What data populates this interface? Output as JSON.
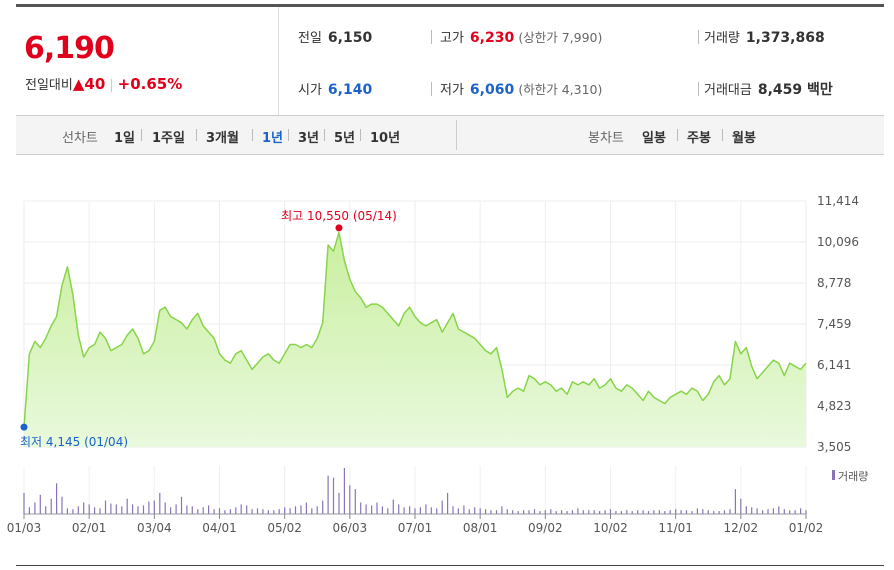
{
  "quote": {
    "price": "6,190",
    "change_label": "전일대비",
    "change_arrow": "▲",
    "change_value": "40",
    "change_pct": "+0.65%",
    "prev_label": "전일",
    "prev_value": "6,150",
    "high_label": "고가",
    "high_value": "6,230",
    "upper_limit": "(상한가 7,990)",
    "volume_label": "거래량",
    "volume_value": "1,373,868",
    "open_label": "시가",
    "open_value": "6,140",
    "low_label": "저가",
    "low_value": "6,060",
    "lower_limit": "(하한가 4,310)",
    "amount_label": "거래대금",
    "amount_value": "8,459 백만"
  },
  "tabs": {
    "line_label": "선차트",
    "line_items": [
      "1일",
      "1주일",
      "3개월",
      "1년",
      "3년",
      "5년",
      "10년"
    ],
    "active": "1년",
    "candle_label": "봉차트",
    "candle_items": [
      "일봉",
      "주봉",
      "월봉"
    ]
  },
  "colors": {
    "up": "#e0001b",
    "down": "#1b63c8",
    "line": "#88d44a",
    "area": "#e9f9dd",
    "volume": "#8a74b8"
  },
  "chart_data": {
    "type": "area",
    "x_ticks": [
      "01/03",
      "02/01",
      "03/04",
      "04/01",
      "05/02",
      "06/03",
      "07/01",
      "08/01",
      "09/02",
      "10/02",
      "11/01",
      "12/02",
      "01/02"
    ],
    "y_ticks": [
      "11,414",
      "10,096",
      "8,778",
      "7,459",
      "6,141",
      "4,823",
      "3,505"
    ],
    "ylim": [
      3505,
      11414
    ],
    "grid": true,
    "max_annotation": "최고 10,550 (05/14)",
    "min_annotation": "최저 4,145 (01/04)",
    "volume_legend": "거래량",
    "series": [
      {
        "values": [
          4145,
          6500,
          6900,
          6700,
          7000,
          7400,
          7700,
          8700,
          9300,
          8400,
          7100,
          6400,
          6700,
          6800,
          7200,
          7000,
          6600,
          6700,
          6800,
          7100,
          7300,
          7000,
          6500,
          6600,
          6900,
          7900,
          8000,
          7700,
          7600,
          7500,
          7300,
          7600,
          7800,
          7400,
          7200,
          7000,
          6500,
          6300,
          6200,
          6500,
          6600,
          6300,
          6000,
          6200,
          6400,
          6500,
          6300,
          6200,
          6500,
          6800,
          6800,
          6700,
          6800,
          6700,
          7000,
          7500,
          10000,
          9800,
          10400,
          9500,
          8900,
          8500,
          8300,
          8000,
          8100,
          8100,
          8000,
          7800,
          7600,
          7400,
          7800,
          8000,
          7700,
          7500,
          7400,
          7500,
          7600,
          7200,
          7500,
          7800,
          7300,
          7200,
          7100,
          7000,
          6800,
          6600,
          6500,
          6700,
          6000,
          5100,
          5300,
          5400,
          5300,
          5800,
          5700,
          5500,
          5600,
          5500,
          5300,
          5400,
          5200,
          5600,
          5500,
          5600,
          5500,
          5700,
          5400,
          5500,
          5700,
          5400,
          5300,
          5500,
          5400,
          5200,
          5000,
          5300,
          5100,
          5000,
          4900,
          5100,
          5200,
          5300,
          5200,
          5400,
          5300,
          5000,
          5200,
          5600,
          5800,
          5500,
          5700,
          6900,
          6500,
          6700,
          6100,
          5700,
          5900,
          6100,
          6300,
          6200,
          5800,
          6200,
          6100,
          6000,
          6200
        ]
      }
    ],
    "volume": [
      22,
      7,
      12,
      20,
      8,
      16,
      32,
      18,
      6,
      5,
      8,
      12,
      10,
      7,
      6,
      14,
      11,
      10,
      8,
      16,
      10,
      8,
      9,
      13,
      14,
      22,
      12,
      7,
      10,
      18,
      9,
      8,
      5,
      7,
      9,
      5,
      6,
      4,
      5,
      7,
      10,
      9,
      5,
      6,
      5,
      4,
      4,
      5,
      7,
      6,
      8,
      9,
      12,
      6,
      8,
      14,
      40,
      38,
      22,
      48,
      30,
      26,
      12,
      10,
      9,
      12,
      8,
      6,
      15,
      10,
      7,
      8,
      6,
      7,
      10,
      7,
      6,
      14,
      22,
      8,
      6,
      9,
      5,
      7,
      6,
      5,
      4,
      4,
      8,
      5,
      4,
      3,
      4,
      4,
      5,
      3,
      4,
      5,
      3,
      4,
      3,
      4,
      6,
      4,
      4,
      4,
      3,
      4,
      5,
      3,
      3,
      4,
      3,
      4,
      4,
      3,
      4,
      4,
      3,
      4,
      5,
      4,
      4,
      3,
      6,
      5,
      4,
      3,
      3,
      4,
      5,
      26,
      16,
      8,
      7,
      6,
      4,
      5,
      6,
      8,
      5,
      4,
      4,
      6,
      4
    ]
  }
}
